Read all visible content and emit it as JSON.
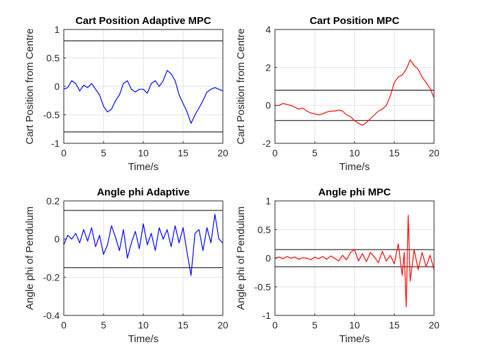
{
  "figure": {
    "background": "#ffffff"
  },
  "chart_data": [
    {
      "type": "line",
      "title": "Cart Position Adaptive MPC",
      "xlabel": "Time/s",
      "ylabel": "Cart Position from Centre",
      "xlim": [
        0,
        20
      ],
      "ylim": [
        -1,
        1
      ],
      "xticks": [
        0,
        5,
        10,
        15,
        20
      ],
      "yticks": [
        -1,
        -0.5,
        0,
        0.5,
        1
      ],
      "grid": true,
      "constraint_lines": [
        0.8,
        -0.8
      ],
      "series": [
        {
          "color": "#0000ff",
          "x": [
            0,
            0.5,
            1,
            1.5,
            2,
            2.5,
            3,
            3.5,
            4,
            4.5,
            5,
            5.5,
            6,
            6.5,
            7,
            7.5,
            8,
            8.5,
            9,
            9.5,
            10,
            10.5,
            11,
            11.5,
            12,
            12.5,
            13,
            13.5,
            14,
            14.5,
            15,
            15.5,
            16,
            16.5,
            17,
            17.5,
            18,
            18.5,
            19,
            19.5,
            20
          ],
          "y": [
            -0.05,
            -0.02,
            0.1,
            0.05,
            -0.08,
            0.02,
            -0.02,
            0.05,
            -0.05,
            -0.15,
            -0.35,
            -0.45,
            -0.4,
            -0.25,
            -0.15,
            0.05,
            0.1,
            -0.05,
            -0.1,
            -0.05,
            -0.05,
            -0.12,
            0.05,
            0.1,
            0.0,
            0.1,
            0.28,
            0.22,
            0.1,
            -0.15,
            -0.3,
            -0.45,
            -0.65,
            -0.5,
            -0.38,
            -0.25,
            -0.1,
            -0.05,
            -0.02,
            -0.05,
            -0.08
          ]
        }
      ]
    },
    {
      "type": "line",
      "title": "Cart Position MPC",
      "xlabel": "Time/s",
      "ylabel": "Cart Position from Centre",
      "xlim": [
        0,
        20
      ],
      "ylim": [
        -2,
        4
      ],
      "xticks": [
        0,
        5,
        10,
        15,
        20
      ],
      "yticks": [
        -2,
        0,
        2,
        4
      ],
      "grid": true,
      "constraint_lines": [
        0.8,
        -0.8
      ],
      "series": [
        {
          "color": "#ff0000",
          "x": [
            0,
            0.5,
            1,
            1.5,
            2,
            2.5,
            3,
            3.5,
            4,
            4.5,
            5,
            5.5,
            6,
            6.5,
            7,
            7.5,
            8,
            8.5,
            9,
            9.5,
            10,
            10.5,
            11,
            11.5,
            12,
            12.5,
            13,
            13.5,
            14,
            14.5,
            15,
            15.5,
            16,
            16.5,
            17,
            17.5,
            18,
            18.5,
            19,
            19.5,
            20
          ],
          "y": [
            0.0,
            0.0,
            0.1,
            0.05,
            0.0,
            -0.1,
            -0.2,
            -0.15,
            -0.3,
            -0.4,
            -0.45,
            -0.5,
            -0.45,
            -0.35,
            -0.3,
            -0.3,
            -0.25,
            -0.3,
            -0.5,
            -0.6,
            -0.8,
            -0.95,
            -1.05,
            -0.9,
            -0.7,
            -0.5,
            -0.3,
            -0.2,
            0.0,
            0.5,
            1.2,
            1.5,
            1.6,
            1.9,
            2.4,
            2.1,
            1.9,
            1.5,
            1.2,
            0.9,
            0.4
          ]
        }
      ]
    },
    {
      "type": "line",
      "title": "Angle phi Adaptive",
      "xlabel": "Time/s",
      "ylabel": "Angle phi of Pendulum",
      "xlim": [
        0,
        20
      ],
      "ylim": [
        -0.4,
        0.2
      ],
      "xticks": [
        0,
        5,
        10,
        15,
        20
      ],
      "yticks": [
        -0.4,
        -0.2,
        0,
        0.2
      ],
      "grid": true,
      "constraint_lines": [
        0.15,
        -0.15
      ],
      "series": [
        {
          "color": "#0000ff",
          "x": [
            0,
            0.5,
            1,
            1.5,
            2,
            2.5,
            3,
            3.5,
            4,
            4.5,
            5,
            5.5,
            6,
            6.5,
            7,
            7.5,
            8,
            8.5,
            9,
            9.5,
            10,
            10.5,
            11,
            11.5,
            12,
            12.5,
            13,
            13.5,
            14,
            14.5,
            15,
            15.5,
            16,
            16.5,
            17,
            17.5,
            18,
            18.5,
            19,
            19.5,
            20
          ],
          "y": [
            -0.03,
            0.02,
            0.0,
            0.03,
            -0.02,
            0.05,
            -0.01,
            0.06,
            -0.04,
            0.02,
            -0.08,
            -0.03,
            0.07,
            0.01,
            -0.06,
            0.05,
            -0.1,
            -0.02,
            0.04,
            -0.05,
            0.08,
            -0.03,
            0.03,
            -0.06,
            0.06,
            0.0,
            0.05,
            -0.04,
            0.07,
            -0.02,
            0.06,
            -0.07,
            -0.19,
            0.03,
            0.05,
            -0.06,
            0.06,
            -0.02,
            0.13,
            0.0,
            -0.02
          ]
        }
      ]
    },
    {
      "type": "line",
      "title": "Angle phi MPC",
      "xlabel": "Time/s",
      "ylabel": "Angle phi of Pendulum",
      "xlim": [
        0,
        20
      ],
      "ylim": [
        -1,
        1
      ],
      "xticks": [
        0,
        5,
        10,
        15,
        20
      ],
      "yticks": [
        -1,
        -0.5,
        0,
        0.5,
        1
      ],
      "grid": true,
      "constraint_lines": [
        0.15,
        -0.15
      ],
      "series": [
        {
          "color": "#ff0000",
          "x": [
            0,
            0.5,
            1,
            1.5,
            2,
            2.5,
            3,
            3.5,
            4,
            4.5,
            5,
            5.5,
            6,
            6.5,
            7,
            7.5,
            8,
            8.5,
            9,
            9.5,
            10,
            10.5,
            11,
            11.5,
            12,
            12.5,
            13,
            13.5,
            14,
            14.5,
            15,
            15.5,
            16,
            16.25,
            16.5,
            16.75,
            17,
            17.5,
            18,
            18.5,
            19,
            19.5,
            20
          ],
          "y": [
            0.0,
            0.02,
            -0.01,
            0.03,
            0.0,
            0.02,
            -0.02,
            0.01,
            0.0,
            -0.03,
            0.02,
            -0.01,
            0.03,
            -0.02,
            0.04,
            0.0,
            -0.05,
            0.05,
            -0.03,
            0.1,
            0.15,
            -0.05,
            0.08,
            -0.06,
            0.1,
            0.02,
            -0.08,
            0.12,
            -0.05,
            0.05,
            -0.1,
            0.25,
            -0.3,
            0.1,
            -0.85,
            0.75,
            -0.4,
            0.15,
            -0.2,
            0.1,
            -0.15,
            0.05,
            -0.2
          ]
        }
      ]
    }
  ]
}
